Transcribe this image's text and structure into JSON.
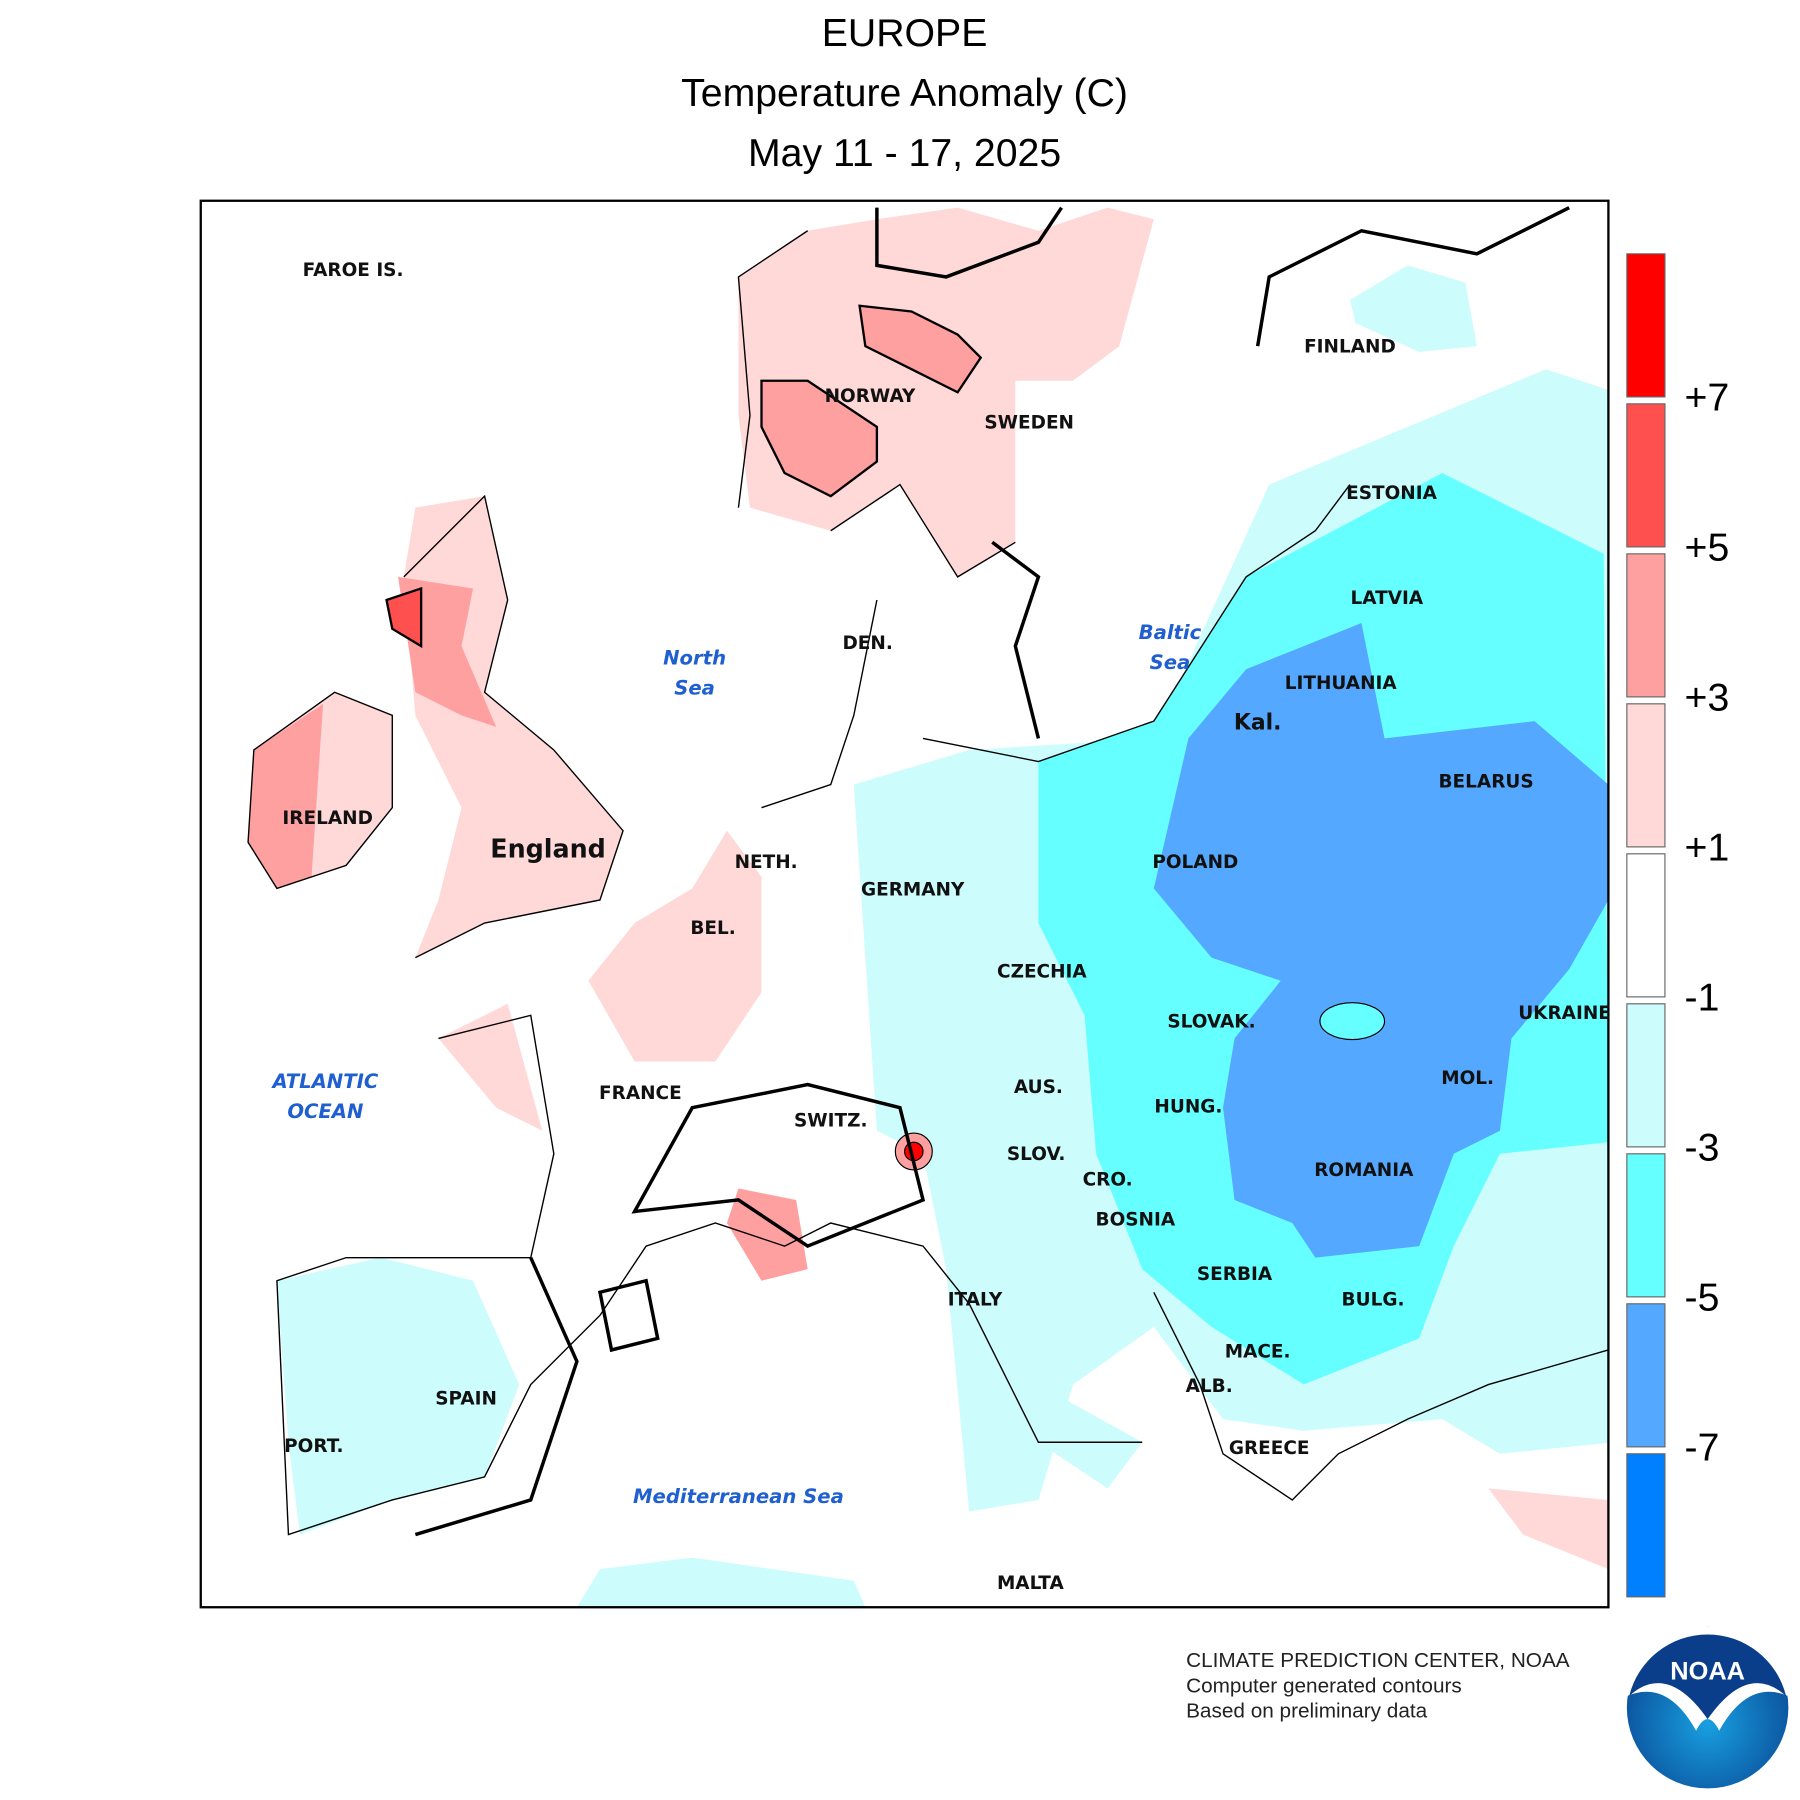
{
  "header": {
    "title": "EUROPE",
    "subtitle": "Temperature Anomaly (C)",
    "period": "May 11 - 17, 2025"
  },
  "map": {
    "countries": [
      "FAROE IS.",
      "NORWAY",
      "SWEDEN",
      "FINLAND",
      "ESTONIA",
      "LATVIA",
      "LITHUANIA",
      "Kal.",
      "BELARUS",
      "POLAND",
      "UKRAINE",
      "DEN.",
      "IRELAND",
      "England",
      "NETH.",
      "GERMANY",
      "BEL.",
      "CZECHIA",
      "SLOVAK.",
      "HUNG.",
      "MOL.",
      "FRANCE",
      "SWITZ.",
      "AUS.",
      "SLOV.",
      "CRO.",
      "ROMANIA",
      "BOSNIA",
      "SERBIA",
      "BULG.",
      "ITALY",
      "MACE.",
      "ALB.",
      "SPAIN",
      "PORT.",
      "GREECE",
      "MALTA"
    ],
    "water": [
      {
        "lines": [
          "North",
          "Sea"
        ]
      },
      {
        "lines": [
          "Baltic",
          "Sea"
        ]
      },
      {
        "lines": [
          "ATLANTIC",
          "OCEAN"
        ]
      },
      {
        "lines": [
          "Mediterranean Sea"
        ]
      }
    ]
  },
  "legend": {
    "labels": [
      "+7",
      "+5",
      "+3",
      "+1",
      "-1",
      "-3",
      "-5",
      "-7"
    ],
    "colors": [
      "#ff0000",
      "#ff5050",
      "#ffa0a0",
      "#ffd8d8",
      "#ffffff",
      "#ccfcfc",
      "#66ffff",
      "#55a8ff",
      "#0080ff"
    ]
  },
  "footer": {
    "lines": [
      "CLIMATE PREDICTION CENTER, NOAA",
      "Computer generated contours",
      "Based on preliminary data"
    ],
    "logo": "NOAA"
  }
}
